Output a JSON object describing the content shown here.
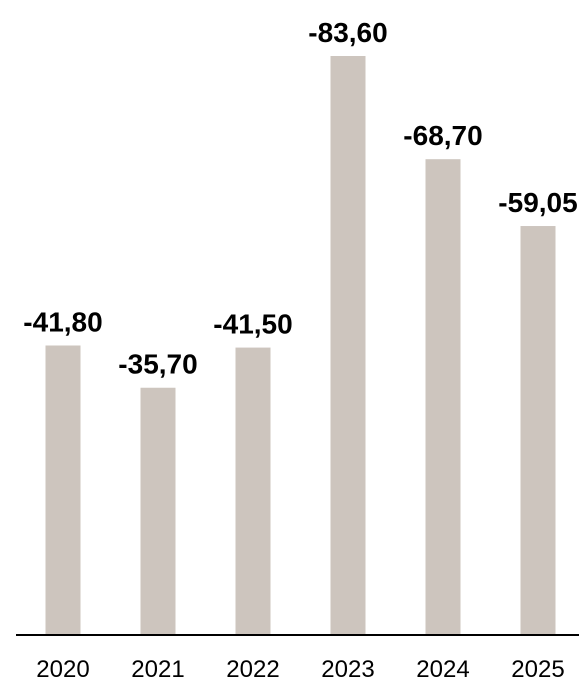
{
  "chart_data": {
    "type": "bar",
    "title": "",
    "xlabel": "",
    "ylabel": "",
    "categories": [
      "2020",
      "2021",
      "2022",
      "2023",
      "2024",
      "2025"
    ],
    "values": [
      -41.8,
      -35.7,
      -41.5,
      -83.6,
      -68.7,
      -59.05
    ],
    "data_labels": [
      "-41,80",
      "-35,70",
      "-41,50",
      "-83,60",
      "-68,70",
      "-59,05"
    ],
    "ylim": [
      0,
      -83.6
    ],
    "grid": false,
    "legend": "none",
    "bars_grow": "upward",
    "colors": {
      "bar": "#cdc5be",
      "axis": "#000000",
      "text": "#000000"
    }
  }
}
